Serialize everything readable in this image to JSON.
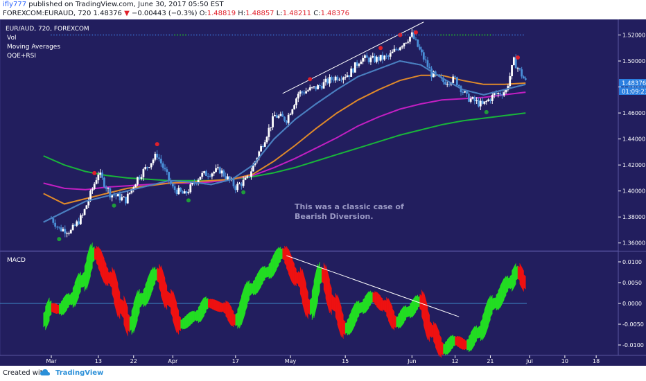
{
  "header": {
    "user": "ifly777",
    "published_text": "published on TradingView.com, June 30, 2017 05:50 EST",
    "symbol_full": "FOREXCOM:EURAUD, 720",
    "last": "1.48376",
    "change_arrow": "▼",
    "change": "−0.00443 (−0.3%)",
    "o_label": "O:",
    "o": "1.48819",
    "h_label": "H:",
    "h": "1.48857",
    "l_label": "L:",
    "l": "1.48211",
    "c_label": "C:",
    "c": "1.48376"
  },
  "legend": {
    "symbol": "EUR/AUD, 720, FOREXCOM",
    "vol": "Vol",
    "ma": "Moving Averages",
    "qqe": "QQE+RSI"
  },
  "annotation": {
    "line1": "This was a classic case of",
    "line2": "Bearish Diversion."
  },
  "macd_label": "MACD",
  "price_badges": {
    "last": "1.48376",
    "countdown": "01:09:23"
  },
  "footer": {
    "created": "Created with",
    "brand": "TradingView"
  },
  "colors": {
    "background": "#221e5e",
    "up_candle": "#ffffff",
    "down_candle": "#4a90d9",
    "ma_fast": "#4a7fc0",
    "ma_mid": "#e08a2a",
    "ma_slow": "#c21fc2",
    "ma_long": "#19b53a",
    "macd_up": "#22dd22",
    "macd_down": "#ee1111",
    "sell_dot": "#e0202b",
    "buy_dot": "#1f9c3a"
  },
  "chart_data": [
    {
      "type": "candlestick",
      "title": "EUR/AUD, 720, FOREXCOM",
      "x_tick_labels": [
        "Mar",
        "13",
        "22",
        "Apr",
        "17",
        "May",
        "15",
        "Jun",
        "12",
        "21",
        "Jul",
        "10",
        "18"
      ],
      "y_tick_labels": [
        "1.52000",
        "1.50000",
        "1.48000",
        "1.46000",
        "1.44000",
        "1.42000",
        "1.40000",
        "1.38000",
        "1.36000"
      ],
      "ylim": [
        1.354,
        1.532
      ],
      "last_price": 1.48376,
      "close_waypoints": [
        {
          "x": "Mar 1",
          "y": 1.379
        },
        {
          "x": "Mar 3",
          "y": 1.371
        },
        {
          "x": "Mar 6",
          "y": 1.369
        },
        {
          "x": "Mar 9",
          "y": 1.381
        },
        {
          "x": "Mar 13",
          "y": 1.414
        },
        {
          "x": "Mar 16",
          "y": 1.398
        },
        {
          "x": "Mar 20",
          "y": 1.393
        },
        {
          "x": "Mar 23",
          "y": 1.41
        },
        {
          "x": "Mar 28",
          "y": 1.428
        },
        {
          "x": "Apr 1",
          "y": 1.402
        },
        {
          "x": "Apr 4",
          "y": 1.397
        },
        {
          "x": "Apr 8",
          "y": 1.412
        },
        {
          "x": "Apr 13",
          "y": 1.416
        },
        {
          "x": "Apr 17",
          "y": 1.403
        },
        {
          "x": "Apr 20",
          "y": 1.409
        },
        {
          "x": "Apr 24",
          "y": 1.437
        },
        {
          "x": "Apr 27",
          "y": 1.458
        },
        {
          "x": "Apr 30",
          "y": 1.455
        },
        {
          "x": "May 3",
          "y": 1.475
        },
        {
          "x": "May 8",
          "y": 1.48
        },
        {
          "x": "May 12",
          "y": 1.487
        },
        {
          "x": "May 16",
          "y": 1.49
        },
        {
          "x": "May 19",
          "y": 1.502
        },
        {
          "x": "May 22",
          "y": 1.501
        },
        {
          "x": "May 26",
          "y": 1.503
        },
        {
          "x": "May 29",
          "y": 1.512
        },
        {
          "x": "Jun 1",
          "y": 1.52
        },
        {
          "x": "Jun 3",
          "y": 1.508
        },
        {
          "x": "Jun 6",
          "y": 1.49
        },
        {
          "x": "Jun 9",
          "y": 1.484
        },
        {
          "x": "Jun 12",
          "y": 1.486
        },
        {
          "x": "Jun 15",
          "y": 1.472
        },
        {
          "x": "Jun 19",
          "y": 1.466
        },
        {
          "x": "Jun 22",
          "y": 1.474
        },
        {
          "x": "Jun 25",
          "y": 1.477
        },
        {
          "x": "Jun 27",
          "y": 1.5
        },
        {
          "x": "Jun 30",
          "y": 1.484
        }
      ],
      "moving_averages": [
        {
          "points": [
            1.376,
            1.384,
            1.392,
            1.396,
            1.4,
            1.404,
            1.408,
            1.407,
            1.405,
            1.409,
            1.42,
            1.44,
            1.455,
            1.467,
            1.478,
            1.488,
            1.494,
            1.5,
            1.497,
            1.487,
            1.478,
            1.474,
            1.478,
            1.482
          ]
        },
        {
          "points": [
            1.398,
            1.39,
            1.394,
            1.398,
            1.402,
            1.404,
            1.406,
            1.407,
            1.408,
            1.409,
            1.413,
            1.423,
            1.435,
            1.448,
            1.46,
            1.47,
            1.478,
            1.485,
            1.489,
            1.489,
            1.485,
            1.482,
            1.482,
            1.483
          ]
        },
        {
          "points": [
            1.406,
            1.402,
            1.401,
            1.403,
            1.404,
            1.405,
            1.406,
            1.406,
            1.407,
            1.409,
            1.412,
            1.418,
            1.425,
            1.433,
            1.441,
            1.45,
            1.457,
            1.463,
            1.467,
            1.47,
            1.471,
            1.472,
            1.474,
            1.476
          ]
        },
        {
          "points": [
            1.427,
            1.42,
            1.415,
            1.412,
            1.41,
            1.409,
            1.408,
            1.408,
            1.408,
            1.409,
            1.411,
            1.414,
            1.418,
            1.423,
            1.428,
            1.433,
            1.438,
            1.443,
            1.447,
            1.451,
            1.454,
            1.456,
            1.458,
            1.46
          ]
        }
      ],
      "trendline": {
        "from": {
          "x": "Apr 29",
          "y": 1.475
        },
        "to": {
          "x": "Jun 4",
          "y": 1.53
        }
      }
    },
    {
      "type": "area",
      "title": "MACD",
      "y_tick_labels": [
        "0.0100",
        "0.0050",
        "0.0000",
        "-0.0050",
        "-0.0100"
      ],
      "ylim": [
        -0.0125,
        0.0125
      ],
      "zero_line": 0.0,
      "values": [
        {
          "x": "Feb 27",
          "y": -0.004
        },
        {
          "x": "Mar 1",
          "y": -0.001
        },
        {
          "x": "Mar 3",
          "y": -0.0014
        },
        {
          "x": "Mar 6",
          "y": 0.001
        },
        {
          "x": "Mar 9",
          "y": 0.0055
        },
        {
          "x": "Mar 12",
          "y": 0.012
        },
        {
          "x": "Mar 16",
          "y": 0.006
        },
        {
          "x": "Mar 19",
          "y": -0.001
        },
        {
          "x": "Mar 21",
          "y": -0.005
        },
        {
          "x": "Mar 24",
          "y": 0.001
        },
        {
          "x": "Mar 28",
          "y": 0.007
        },
        {
          "x": "Mar 31",
          "y": 0.001
        },
        {
          "x": "Apr 3",
          "y": -0.005
        },
        {
          "x": "Apr 7",
          "y": -0.003
        },
        {
          "x": "Apr 10",
          "y": 0.0
        },
        {
          "x": "Apr 14",
          "y": -0.001
        },
        {
          "x": "Apr 17",
          "y": -0.004
        },
        {
          "x": "Apr 21",
          "y": 0.0035
        },
        {
          "x": "Apr 25",
          "y": 0.0075
        },
        {
          "x": "Apr 29",
          "y": 0.012
        },
        {
          "x": "May 3",
          "y": 0.006
        },
        {
          "x": "May 6",
          "y": -0.001
        },
        {
          "x": "May 9",
          "y": 0.007
        },
        {
          "x": "May 12",
          "y": 0.0
        },
        {
          "x": "May 15",
          "y": -0.006
        },
        {
          "x": "May 19",
          "y": -0.001
        },
        {
          "x": "May 22",
          "y": 0.0015
        },
        {
          "x": "May 25",
          "y": -0.0005
        },
        {
          "x": "May 28",
          "y": -0.0045
        },
        {
          "x": "May 31",
          "y": -0.002
        },
        {
          "x": "Jun 3",
          "y": 0.0005
        },
        {
          "x": "Jun 6",
          "y": -0.0065
        },
        {
          "x": "Jun 9",
          "y": -0.011
        },
        {
          "x": "Jun 12",
          "y": -0.009
        },
        {
          "x": "Jun 15",
          "y": -0.01
        },
        {
          "x": "Jun 18",
          "y": -0.007
        },
        {
          "x": "Jun 22",
          "y": 0.0
        },
        {
          "x": "Jun 26",
          "y": 0.005
        },
        {
          "x": "Jun 28",
          "y": 0.0075
        },
        {
          "x": "Jun 30",
          "y": 0.005
        }
      ],
      "trendline": {
        "from": {
          "x": "Apr 30",
          "y": 0.0115
        },
        "to": {
          "x": "Jun 13",
          "y": -0.0032
        }
      }
    }
  ]
}
